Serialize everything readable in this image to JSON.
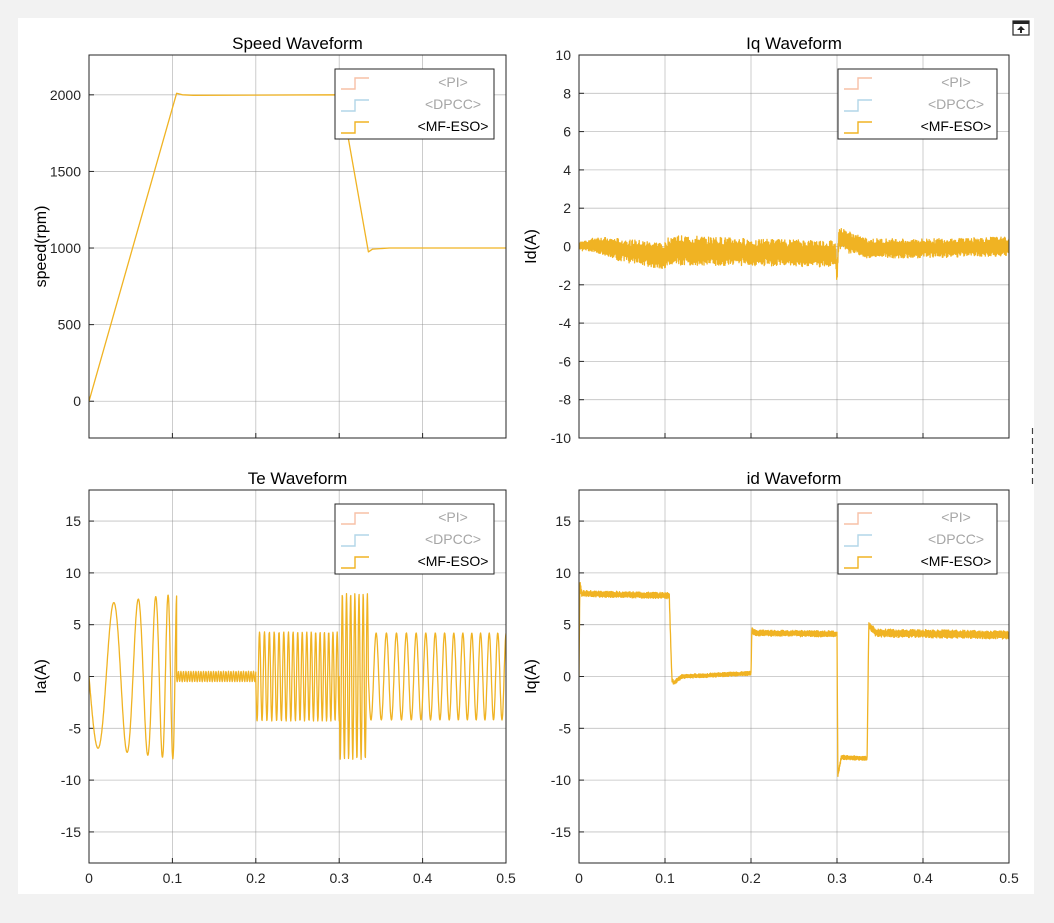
{
  "window": {
    "undock_icon": "undock-icon"
  },
  "legend_items": [
    "<PI>",
    "<DPCC>",
    "<MF-ESO>"
  ],
  "colors": {
    "pi": "#f4a582",
    "dpcc": "#92c5de",
    "mfeso": "#f0b323",
    "grid": "#8c8c8c",
    "axis": "#262626",
    "legend_dim": "#a6a6a6"
  },
  "chart_data": [
    {
      "id": "speed",
      "type": "line",
      "title": "Speed Waveform",
      "xlabel": "",
      "ylabel": "speed(rpm)",
      "xlim": [
        0,
        0.5
      ],
      "ylim": [
        -240,
        2260
      ],
      "yticks": [
        0,
        500,
        1000,
        1500,
        2000
      ],
      "xticks": [
        0,
        0.1,
        0.2,
        0.3,
        0.4,
        0.5
      ],
      "show_xticklabels": false,
      "grid": true,
      "legend": "top-right",
      "series": [
        {
          "name": "<MF-ESO>",
          "x": [
            0,
            0.105,
            0.112,
            0.125,
            0.3,
            0.302,
            0.335,
            0.34,
            0.36,
            0.5
          ],
          "y": [
            0,
            2010,
            2000,
            1997,
            2000,
            1990,
            975,
            993,
            1000,
            1000
          ]
        }
      ]
    },
    {
      "id": "iq",
      "type": "line",
      "title": "Iq Waveform",
      "xlabel": "",
      "ylabel": "Id(A)",
      "xlim": [
        0,
        0.5
      ],
      "ylim": [
        -10,
        10
      ],
      "yticks": [
        -10,
        -8,
        -6,
        -4,
        -2,
        0,
        2,
        4,
        6,
        8,
        10
      ],
      "xticks": [
        0,
        0.1,
        0.2,
        0.3,
        0.4,
        0.5
      ],
      "show_xticklabels": false,
      "grid": true,
      "legend": "top-right",
      "series": [
        {
          "name": "<MF-ESO>",
          "x": [
            0,
            0.02,
            0.05,
            0.1,
            0.105,
            0.2,
            0.298,
            0.3,
            0.302,
            0.335,
            0.4,
            0.5
          ],
          "y": [
            0,
            0.1,
            -0.2,
            -0.5,
            -0.2,
            -0.3,
            -0.4,
            -1.5,
            0.4,
            -0.1,
            -0.1,
            0
          ],
          "ripple": [
            0.2,
            0.4,
            0.6,
            0.7,
            0.8,
            0.7,
            0.7,
            0.5,
            0.6,
            0.5,
            0.5,
            0.5
          ]
        }
      ]
    },
    {
      "id": "te",
      "type": "line",
      "title": "Te Waveform",
      "xlabel": "",
      "ylabel": "Ia(A)",
      "xlim": [
        0,
        0.5
      ],
      "ylim": [
        -18,
        18
      ],
      "yticks": [
        -15,
        -10,
        -5,
        0,
        5,
        10,
        15
      ],
      "xticks": [
        0,
        0.1,
        0.2,
        0.3,
        0.4,
        0.5
      ],
      "show_xticklabels": true,
      "grid": true,
      "legend": "top-right",
      "series": [
        {
          "name": "<MF-ESO>",
          "segments": [
            {
              "x0": 0,
              "x1": 0.105,
              "amp": 8,
              "period_start": 0.045,
              "period_end": 0.009
            },
            {
              "x0": 0.105,
              "x1": 0.2,
              "amp": 0.5,
              "period_start": 0.003,
              "period_end": 0.003
            },
            {
              "x0": 0.2,
              "x1": 0.3,
              "amp": 4.3,
              "period_start": 0.006,
              "period_end": 0.005
            },
            {
              "x0": 0.3,
              "x1": 0.335,
              "amp": 8,
              "period_start": 0.005,
              "period_end": 0.005
            },
            {
              "x0": 0.335,
              "x1": 0.5,
              "amp": 4.2,
              "period_start": 0.0125,
              "period_end": 0.01
            }
          ]
        }
      ]
    },
    {
      "id": "id",
      "type": "line",
      "title": "id Waveform",
      "xlabel": "",
      "ylabel": "Iq(A)",
      "xlim": [
        0,
        0.5
      ],
      "ylim": [
        -18,
        18
      ],
      "yticks": [
        -15,
        -10,
        -5,
        0,
        5,
        10,
        15
      ],
      "xticks": [
        0,
        0.1,
        0.2,
        0.3,
        0.4,
        0.5
      ],
      "show_xticklabels": true,
      "grid": true,
      "legend": "top-right",
      "series": [
        {
          "name": "<MF-ESO>",
          "x": [
            0,
            0.001,
            0.003,
            0.105,
            0.108,
            0.11,
            0.12,
            0.2,
            0.201,
            0.205,
            0.3,
            0.301,
            0.305,
            0.335,
            0.337,
            0.345,
            0.5
          ],
          "y": [
            0,
            9,
            8,
            7.8,
            -0.3,
            -0.6,
            0,
            0.3,
            4.5,
            4.2,
            4.1,
            -9.5,
            -7.8,
            -7.9,
            5,
            4.2,
            4
          ],
          "ripple": [
            0,
            0.5,
            0.3,
            0.3,
            0.2,
            0.2,
            0.2,
            0.2,
            0.3,
            0.3,
            0.3,
            0.3,
            0.2,
            0.2,
            0.3,
            0.4,
            0.4
          ]
        }
      ]
    }
  ]
}
